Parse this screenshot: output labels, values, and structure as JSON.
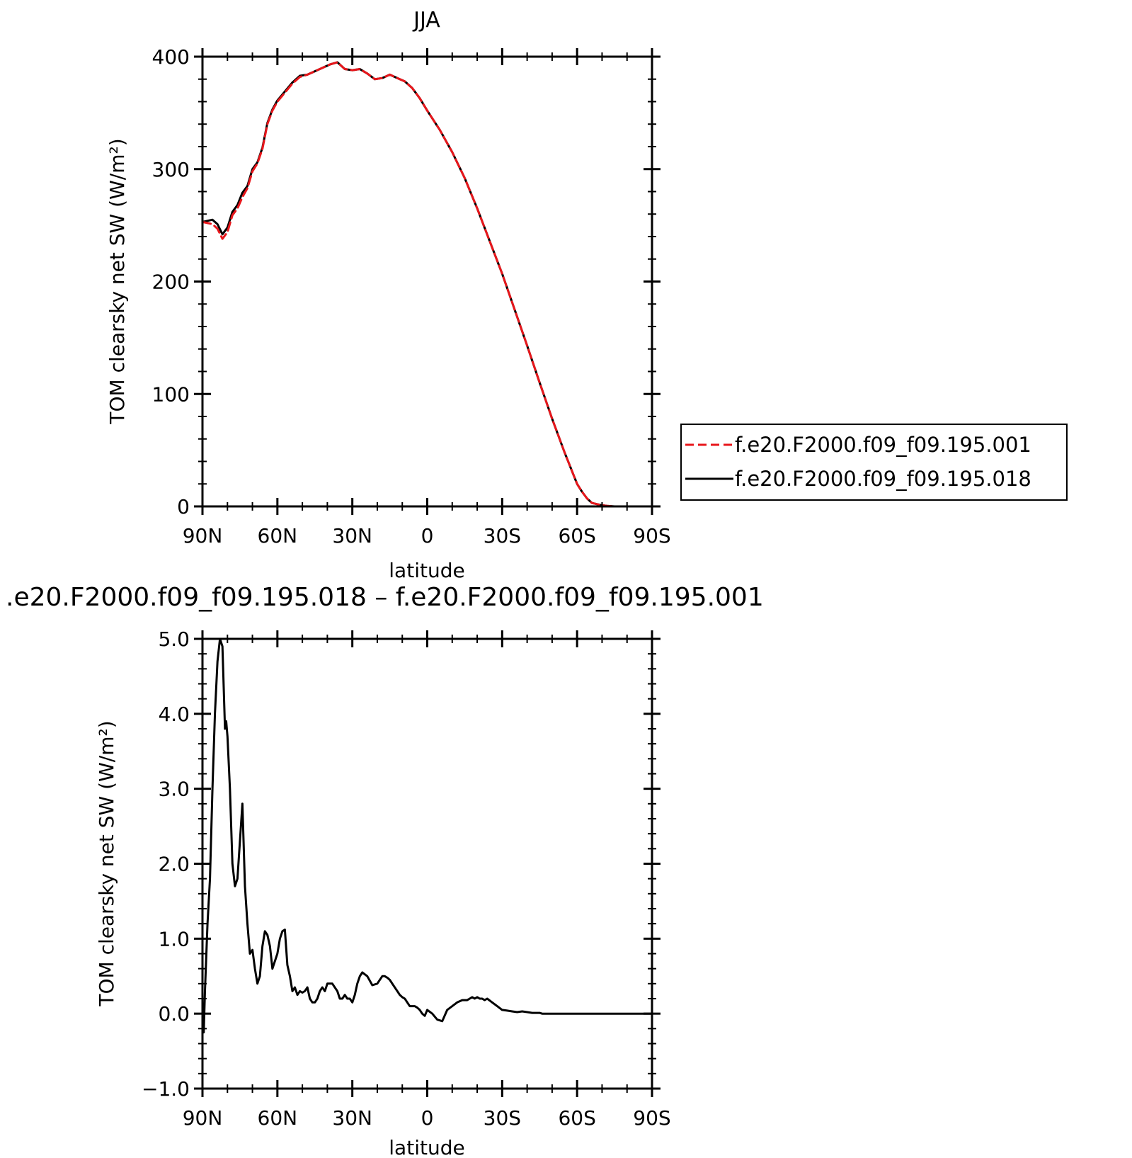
{
  "chart_data": [
    {
      "type": "line",
      "title": "JJA",
      "xlabel": "latitude",
      "ylabel": "TOM clearsky net SW (W/m²)",
      "xlim": [
        90,
        -90
      ],
      "ylim": [
        0,
        400
      ],
      "x_ticks": [
        {
          "value": 90,
          "label": "90N"
        },
        {
          "value": 60,
          "label": "60N"
        },
        {
          "value": 30,
          "label": "30N"
        },
        {
          "value": 0,
          "label": "0"
        },
        {
          "value": -30,
          "label": "30S"
        },
        {
          "value": -60,
          "label": "60S"
        },
        {
          "value": -90,
          "label": "90S"
        }
      ],
      "y_ticks": [
        {
          "value": 0,
          "label": "0"
        },
        {
          "value": 100,
          "label": "100"
        },
        {
          "value": 200,
          "label": "200"
        },
        {
          "value": 300,
          "label": "300"
        },
        {
          "value": 400,
          "label": "400"
        }
      ],
      "legend_position": "right",
      "series": [
        {
          "name": "f.e20.F2000.f09_f09.195.001",
          "color": "#e8161b",
          "dash": "dashed",
          "x": [
            90,
            88,
            86,
            84,
            82,
            80,
            78,
            76,
            74,
            72,
            70,
            68,
            66,
            64,
            62,
            60,
            57,
            54,
            51,
            48,
            45,
            42,
            39,
            36,
            33,
            30,
            27,
            24,
            21,
            18,
            15,
            12,
            9,
            6,
            3,
            0,
            -5,
            -10,
            -15,
            -20,
            -25,
            -30,
            -35,
            -40,
            -45,
            -50,
            -55,
            -60,
            -62,
            -64,
            -66,
            -68,
            -70,
            -72,
            -75,
            -80,
            -90
          ],
          "y": [
            253,
            252,
            251,
            247,
            238,
            244,
            259,
            265,
            275,
            283,
            298,
            305,
            318,
            340,
            352,
            360,
            368,
            376,
            382,
            384,
            387,
            390,
            393,
            395,
            389,
            388,
            389,
            385,
            380,
            381,
            384,
            381,
            378,
            372,
            363,
            352,
            335,
            315,
            292,
            265,
            236,
            207,
            175,
            143,
            110,
            78,
            48,
            20,
            13,
            7,
            3,
            2,
            1,
            0.5,
            0,
            0,
            0
          ]
        },
        {
          "name": "f.e20.F2000.f09_f09.195.018",
          "color": "#000000",
          "dash": "solid",
          "x": [
            90,
            88,
            86,
            84,
            82,
            80,
            78,
            76,
            74,
            72,
            70,
            68,
            66,
            64,
            62,
            60,
            57,
            54,
            51,
            48,
            45,
            42,
            39,
            36,
            33,
            30,
            27,
            24,
            21,
            18,
            15,
            12,
            9,
            6,
            3,
            0,
            -5,
            -10,
            -15,
            -20,
            -25,
            -30,
            -35,
            -40,
            -45,
            -50,
            -55,
            -60,
            -62,
            -64,
            -66,
            -68,
            -70,
            -72,
            -75,
            -80,
            -90
          ],
          "y": [
            253,
            254,
            255,
            251,
            242,
            248,
            262,
            268,
            279,
            285,
            300,
            306,
            319,
            341,
            353,
            361,
            369,
            377,
            383,
            384,
            387,
            390,
            393,
            395,
            389,
            388,
            389,
            385,
            380,
            381,
            384,
            381,
            378,
            372,
            363,
            352,
            335,
            315,
            292,
            265,
            236,
            207,
            175,
            143,
            110,
            78,
            48,
            20,
            13,
            7,
            3,
            2,
            1,
            0.5,
            0,
            0,
            0
          ]
        }
      ]
    },
    {
      "type": "line",
      "title": ".e20.F2000.f09_f09.195.018 – f.e20.F2000.f09_f09.195.001",
      "xlabel": "latitude",
      "ylabel": "TOM clearsky net SW (W/m²)",
      "xlim": [
        90,
        -90
      ],
      "ylim": [
        -1.0,
        5.0
      ],
      "x_ticks": [
        {
          "value": 90,
          "label": "90N"
        },
        {
          "value": 60,
          "label": "60N"
        },
        {
          "value": 30,
          "label": "30N"
        },
        {
          "value": 0,
          "label": "0"
        },
        {
          "value": -30,
          "label": "30S"
        },
        {
          "value": -60,
          "label": "60S"
        },
        {
          "value": -90,
          "label": "90S"
        }
      ],
      "y_ticks": [
        {
          "value": -1.0,
          "label": "−1.0"
        },
        {
          "value": 0.0,
          "label": "0.0"
        },
        {
          "value": 1.0,
          "label": "1.0"
        },
        {
          "value": 2.0,
          "label": "2.0"
        },
        {
          "value": 3.0,
          "label": "3.0"
        },
        {
          "value": 4.0,
          "label": "4.0"
        },
        {
          "value": 5.0,
          "label": "5.0"
        }
      ],
      "series": [
        {
          "color": "#000000",
          "dash": "solid",
          "x": [
            90,
            89.5,
            89,
            88,
            87,
            86,
            85,
            84,
            83,
            82,
            81,
            80.5,
            80,
            79,
            78,
            77,
            76,
            75,
            74,
            73,
            72,
            71,
            70,
            69,
            68,
            67,
            66,
            65,
            64,
            63,
            62,
            61,
            60,
            59,
            58,
            57,
            56,
            55,
            54,
            53,
            52,
            51,
            50,
            49,
            48,
            47,
            46,
            45,
            44,
            43,
            42,
            41,
            40,
            38,
            36,
            35,
            34,
            33,
            32,
            31,
            30,
            29,
            28,
            27,
            26,
            24,
            22,
            20,
            18,
            17,
            16,
            15,
            14,
            13,
            12,
            11,
            10,
            9,
            8,
            7,
            6,
            5,
            4,
            3,
            2,
            1,
            0,
            -2,
            -4,
            -6,
            -8,
            -10,
            -12,
            -14,
            -16,
            -17,
            -18,
            -19,
            -20,
            -21,
            -22,
            -23,
            -24,
            -26,
            -28,
            -30,
            -32,
            -34,
            -36,
            -38,
            -40,
            -42,
            -44,
            -45,
            -46,
            -47,
            -48,
            -50,
            -52,
            -54,
            -56,
            -58,
            -60,
            -62,
            -64,
            -66,
            -68,
            -70,
            -72,
            -75,
            -80,
            -90
          ],
          "y": [
            0,
            -0.25,
            0.3,
            1.2,
            1.8,
            3.0,
            4.0,
            4.7,
            5.0,
            4.9,
            3.8,
            3.9,
            3.7,
            3.0,
            2.0,
            1.7,
            1.8,
            2.3,
            2.8,
            1.7,
            1.2,
            0.8,
            0.85,
            0.6,
            0.4,
            0.5,
            0.9,
            1.1,
            1.05,
            0.9,
            0.6,
            0.7,
            0.8,
            1.0,
            1.1,
            1.12,
            0.65,
            0.5,
            0.3,
            0.35,
            0.25,
            0.3,
            0.28,
            0.3,
            0.35,
            0.2,
            0.15,
            0.15,
            0.2,
            0.3,
            0.35,
            0.3,
            0.4,
            0.4,
            0.3,
            0.2,
            0.2,
            0.25,
            0.2,
            0.2,
            0.15,
            0.25,
            0.4,
            0.5,
            0.55,
            0.5,
            0.38,
            0.4,
            0.5,
            0.5,
            0.48,
            0.45,
            0.4,
            0.35,
            0.3,
            0.25,
            0.22,
            0.2,
            0.15,
            0.1,
            0.1,
            0.1,
            0.08,
            0.05,
            0.0,
            -0.03,
            0.05,
            0.0,
            -0.08,
            -0.1,
            0.05,
            0.1,
            0.15,
            0.18,
            0.18,
            0.2,
            0.22,
            0.2,
            0.22,
            0.2,
            0.2,
            0.18,
            0.2,
            0.15,
            0.1,
            0.05,
            0.04,
            0.03,
            0.02,
            0.03,
            0.02,
            0.01,
            0.01,
            0.01,
            0.0,
            0.0,
            0.0,
            0.0,
            0.0,
            0.0,
            0.0,
            0.0,
            0.0,
            0.0,
            0.0,
            0.0,
            0.0,
            0.0,
            0.0,
            0.0,
            0.0,
            0.0
          ]
        }
      ]
    }
  ]
}
